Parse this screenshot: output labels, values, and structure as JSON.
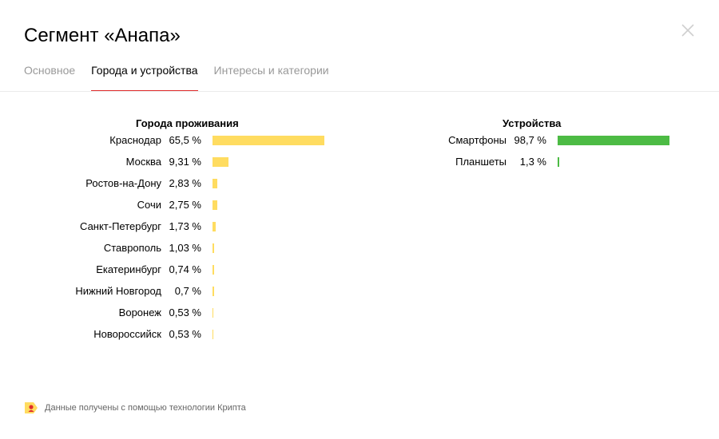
{
  "modal": {
    "title": "Сегмент «Анапа»"
  },
  "tabs": [
    {
      "label": "Основное",
      "active": false
    },
    {
      "label": "Города и устройства",
      "active": true
    },
    {
      "label": "Интересы и категории",
      "active": false
    }
  ],
  "cities": {
    "title": "Города проживания",
    "bar_color": "#ffdc60",
    "max_value": 65.5,
    "rows": [
      {
        "name": "Краснодар",
        "pct_label": "65,5 %",
        "value": 65.5
      },
      {
        "name": "Москва",
        "pct_label": "9,31 %",
        "value": 9.31
      },
      {
        "name": "Ростов-на-Дону",
        "pct_label": "2,83 %",
        "value": 2.83
      },
      {
        "name": "Сочи",
        "pct_label": "2,75 %",
        "value": 2.75
      },
      {
        "name": "Санкт-Петербург",
        "pct_label": "1,73 %",
        "value": 1.73
      },
      {
        "name": "Ставрополь",
        "pct_label": "1,03 %",
        "value": 1.03
      },
      {
        "name": "Екатеринбург",
        "pct_label": "0,74 %",
        "value": 0.74
      },
      {
        "name": "Нижний Новгород",
        "pct_label": "0,7 %",
        "value": 0.7
      },
      {
        "name": "Воронеж",
        "pct_label": "0,53 %",
        "value": 0.53
      },
      {
        "name": "Новороссийск",
        "pct_label": "0,53 %",
        "value": 0.53
      }
    ]
  },
  "devices": {
    "title": "Устройства",
    "bar_color": "#4cbb44",
    "max_value": 98.7,
    "rows": [
      {
        "name": "Смартфоны",
        "pct_label": "98,7 %",
        "value": 98.7
      },
      {
        "name": "Планшеты",
        "pct_label": "1,3 %",
        "value": 1.3
      }
    ]
  },
  "footer": {
    "note": "Данные получены с помощью технологии Крипта",
    "logo_icon": "krypta-logo-icon"
  },
  "icons": {
    "close": "close-icon"
  }
}
